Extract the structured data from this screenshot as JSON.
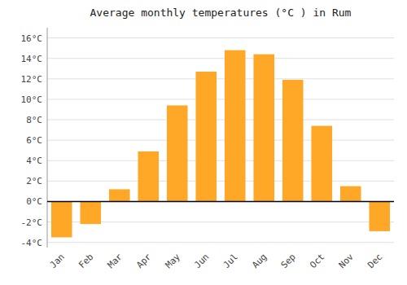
{
  "chart_data": {
    "type": "bar",
    "title": "Average monthly temperatures (°C ) in Rum",
    "categories": [
      "Jan",
      "Feb",
      "Mar",
      "Apr",
      "May",
      "Jun",
      "Jul",
      "Aug",
      "Sep",
      "Oct",
      "Nov",
      "Dec"
    ],
    "values": [
      -3.5,
      -2.2,
      1.2,
      4.9,
      9.4,
      12.7,
      14.8,
      14.4,
      11.9,
      7.4,
      1.5,
      -2.9
    ],
    "color": "#FFA726",
    "ylim": [
      -4.5,
      17
    ],
    "yticks": [
      {
        "value": -4,
        "label": "-4°C"
      },
      {
        "value": -2,
        "label": "-2°C"
      },
      {
        "value": 0,
        "label": "0°C"
      },
      {
        "value": 2,
        "label": "2°C"
      },
      {
        "value": 4,
        "label": "4°C"
      },
      {
        "value": 6,
        "label": "6°C"
      },
      {
        "value": 8,
        "label": "8°C"
      },
      {
        "value": 10,
        "label": "10°C"
      },
      {
        "value": 12,
        "label": "12°C"
      },
      {
        "value": 14,
        "label": "14°C"
      },
      {
        "value": 16,
        "label": "16°C"
      }
    ],
    "grid": true
  }
}
